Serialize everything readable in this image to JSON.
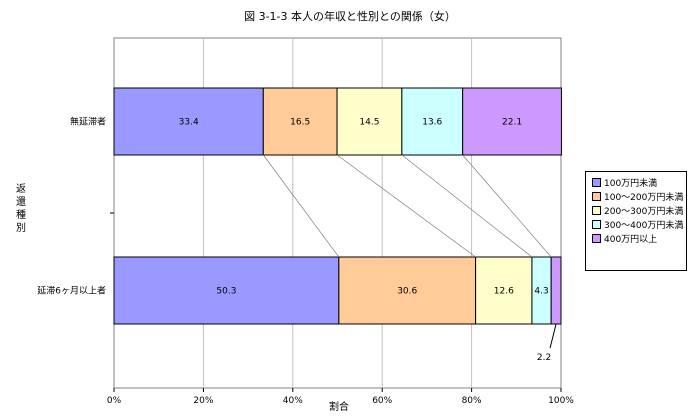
{
  "chart_data": {
    "type": "bar",
    "orientation": "horizontal",
    "stacked": true,
    "percent": true,
    "title": "図 3-1-3 本人の年収と性別との関係（女）",
    "xlabel": "割合",
    "ylabel": "返還種別",
    "categories": [
      "無延滞者",
      "延滞6ヶ月以上者"
    ],
    "xlim": [
      0,
      100
    ],
    "xticks": [
      "0%",
      "20%",
      "40%",
      "60%",
      "80%",
      "100%"
    ],
    "grid": true,
    "legend_position": "right",
    "series": [
      {
        "name": "100万円未満",
        "values": [
          33.4,
          50.3
        ],
        "color": "#9999ff"
      },
      {
        "name": "100～200万円未満",
        "values": [
          16.5,
          30.6
        ],
        "color": "#ffcc99"
      },
      {
        "name": "200～300万円未満",
        "values": [
          14.5,
          12.6
        ],
        "color": "#ffffcc"
      },
      {
        "name": "300～400万円未満",
        "values": [
          13.6,
          4.3
        ],
        "color": "#ccffff"
      },
      {
        "name": "400万円以上",
        "values": [
          22.1,
          2.2
        ],
        "color": "#cc99ff"
      }
    ],
    "labels": [
      [
        "33.4",
        "16.5",
        "14.5",
        "13.6",
        "22.1"
      ],
      [
        "50.3",
        "30.6",
        "12.6",
        "4.3",
        "2.2"
      ]
    ]
  }
}
